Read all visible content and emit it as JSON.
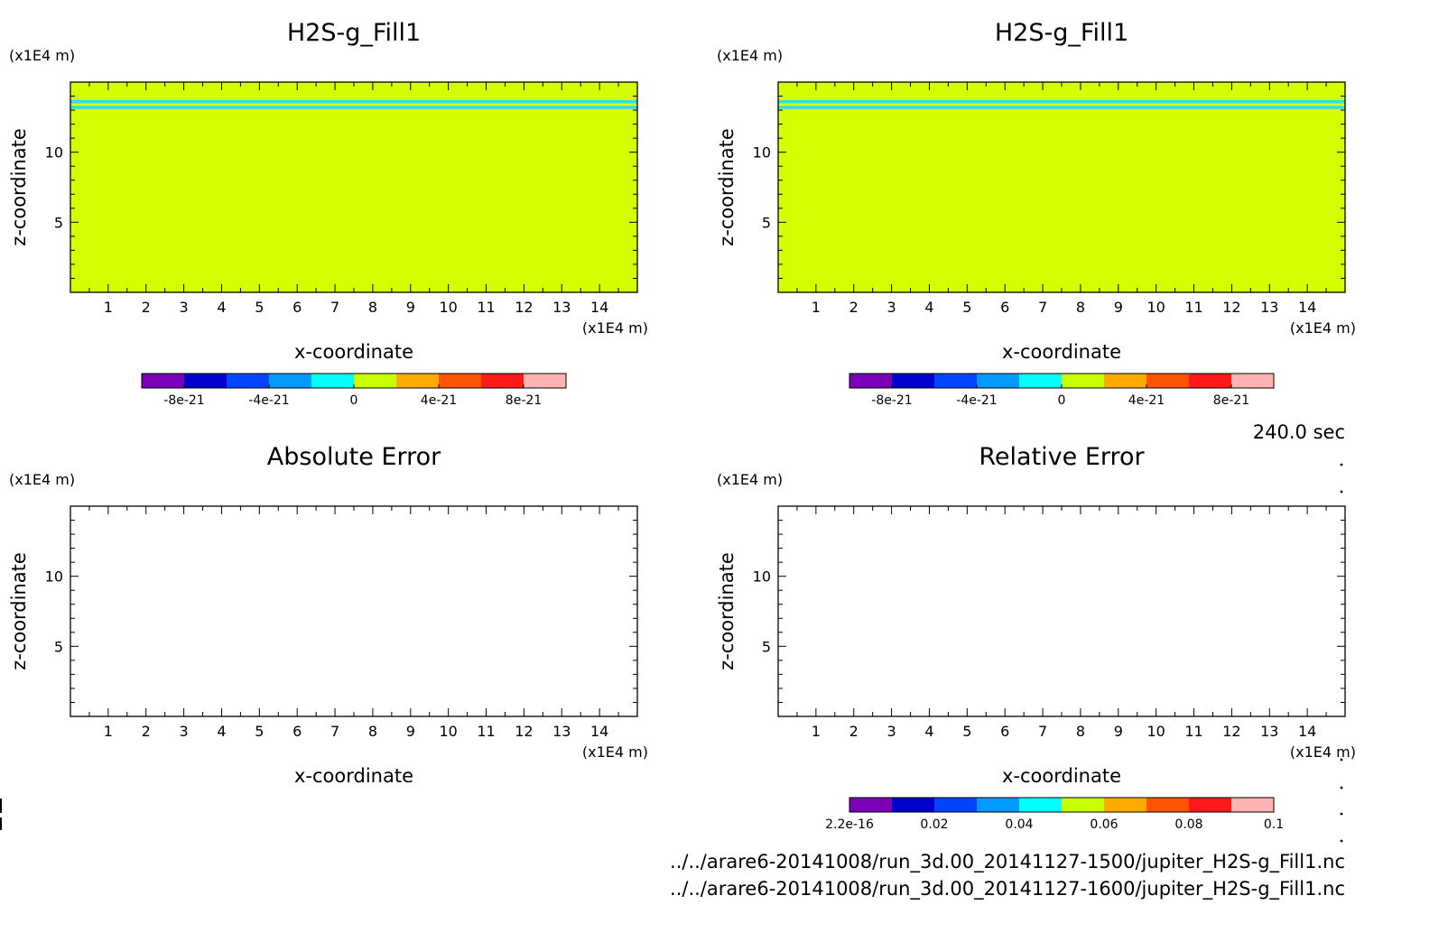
{
  "time_label": "240.0 sec",
  "files": [
    "../../arare6-20141008/run_3d.00_20141127-1500/jupiter_H2S-g_Fill1.nc",
    "../../arare6-20141008/run_3d.00_20141127-1600/jupiter_H2S-g_Fill1.nc"
  ],
  "colors": {
    "field": "#d4ff00",
    "band": "#33e0e0",
    "palette": [
      "#7a00b8",
      "#0000cc",
      "#0044ff",
      "#0099ff",
      "#00ffff",
      "#c8ff00",
      "#ffaa00",
      "#ff5500",
      "#ff1a1a",
      "#ffb3b3"
    ]
  },
  "chart_data": [
    {
      "type": "heatmap",
      "title": "H2S-g_Fill1",
      "xlabel": "x-coordinate",
      "ylabel": "z-coordinate",
      "x_unit": "(x1E4 m)",
      "y_unit": "(x1E4 m)",
      "xlim": [
        0,
        15
      ],
      "ylim": [
        0,
        15
      ],
      "xticks": [
        "1",
        "2",
        "3",
        "4",
        "5",
        "6",
        "7",
        "8",
        "9",
        "10",
        "11",
        "12",
        "13",
        "14"
      ],
      "yticks": [
        "5",
        "10"
      ],
      "field": "uniform",
      "bands_z": [
        13.2,
        13.6
      ],
      "colorbar": {
        "labels": [
          "-8e-21",
          "-4e-21",
          "0",
          "4e-21",
          "8e-21"
        ],
        "range": [
          -1e-20,
          1e-20
        ]
      }
    },
    {
      "type": "heatmap",
      "title": "H2S-g_Fill1",
      "xlabel": "x-coordinate",
      "ylabel": "z-coordinate",
      "x_unit": "(x1E4 m)",
      "y_unit": "(x1E4 m)",
      "xlim": [
        0,
        15
      ],
      "ylim": [
        0,
        15
      ],
      "xticks": [
        "1",
        "2",
        "3",
        "4",
        "5",
        "6",
        "7",
        "8",
        "9",
        "10",
        "11",
        "12",
        "13",
        "14"
      ],
      "yticks": [
        "5",
        "10"
      ],
      "field": "uniform",
      "bands_z": [
        13.2,
        13.6
      ],
      "colorbar": {
        "labels": [
          "-8e-21",
          "-4e-21",
          "0",
          "4e-21",
          "8e-21"
        ],
        "range": [
          -1e-20,
          1e-20
        ]
      }
    },
    {
      "type": "heatmap",
      "title": "Absolute Error",
      "xlabel": "x-coordinate",
      "ylabel": "z-coordinate",
      "x_unit": "(x1E4 m)",
      "y_unit": "(x1E4 m)",
      "xlim": [
        0,
        15
      ],
      "ylim": [
        0,
        15
      ],
      "xticks": [
        "1",
        "2",
        "3",
        "4",
        "5",
        "6",
        "7",
        "8",
        "9",
        "10",
        "11",
        "12",
        "13",
        "14"
      ],
      "yticks": [
        "5",
        "10"
      ],
      "field": "empty",
      "bands_z": [],
      "colorbar": null
    },
    {
      "type": "heatmap",
      "title": "Relative Error",
      "xlabel": "x-coordinate",
      "ylabel": "z-coordinate",
      "x_unit": "(x1E4 m)",
      "y_unit": "(x1E4 m)",
      "xlim": [
        0,
        15
      ],
      "ylim": [
        0,
        15
      ],
      "xticks": [
        "1",
        "2",
        "3",
        "4",
        "5",
        "6",
        "7",
        "8",
        "9",
        "10",
        "11",
        "12",
        "13",
        "14"
      ],
      "yticks": [
        "5",
        "10"
      ],
      "field": "empty",
      "bands_z": [],
      "colorbar": {
        "labels": [
          "2.2e-16",
          "0.02",
          "0.04",
          "0.06",
          "0.08",
          "0.1"
        ],
        "range": [
          0,
          0.1
        ]
      }
    }
  ]
}
